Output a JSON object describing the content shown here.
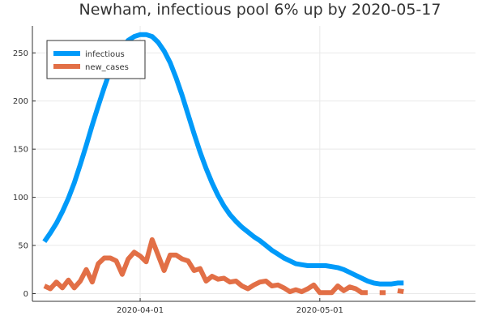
{
  "chart_data": {
    "type": "line",
    "title": "Newham, infectious pool 6% up by 2020-05-17",
    "xlabel": "",
    "ylabel": "",
    "x_tick_labels": [
      "2020-04-01",
      "2020-05-01"
    ],
    "y_tick_labels": [
      "0",
      "50",
      "100",
      "150",
      "200",
      "250"
    ],
    "xlim": [
      "2020-03-14",
      "2020-05-27"
    ],
    "ylim": [
      -8,
      278
    ],
    "grid": true,
    "legend_position": "top-left",
    "x_start": "2020-03-16",
    "series": [
      {
        "name": "infectious",
        "color": "#009af9",
        "values": [
          54,
          63,
          73,
          85,
          99,
          115,
          134,
          154,
          175,
          195,
          214,
          232,
          246,
          256,
          263,
          267,
          269,
          269,
          267,
          261,
          252,
          240,
          224,
          206,
          186,
          166,
          147,
          130,
          115,
          102,
          91,
          82,
          75,
          69,
          64,
          59,
          55,
          50,
          45,
          41,
          37,
          34,
          31,
          30,
          29,
          29,
          29,
          29,
          28,
          27,
          25,
          22,
          19,
          16,
          13,
          11,
          10,
          10,
          10,
          11,
          11
        ]
      },
      {
        "name": "new_cases",
        "color": "#e26f46",
        "values": [
          8,
          5,
          12,
          6,
          14,
          6,
          13,
          25,
          12,
          31,
          37,
          37,
          34,
          20,
          36,
          43,
          39,
          33,
          56,
          40,
          24,
          40,
          40,
          36,
          34,
          24,
          26,
          13,
          18,
          15,
          16,
          12,
          13,
          8,
          5,
          9,
          12,
          13,
          8,
          9,
          6,
          2,
          4,
          2,
          5,
          9,
          1,
          1,
          1,
          8,
          3,
          7,
          5,
          1,
          1,
          null,
          1,
          1,
          null,
          3,
          2
        ]
      }
    ]
  }
}
